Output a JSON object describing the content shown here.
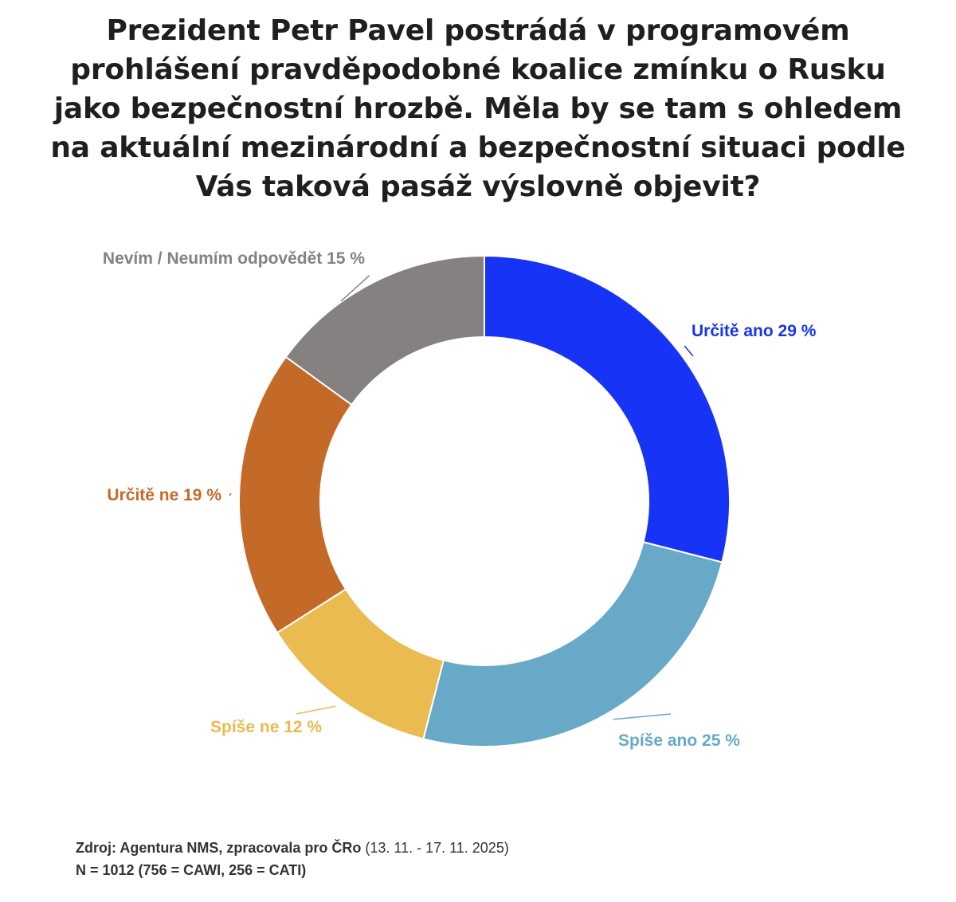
{
  "chart_data": {
    "type": "pie",
    "variant": "donut",
    "title_lines": [
      "Prezident Petr Pavel postrádá v programovém",
      "prohlášení pravděpodobné koalice zmínku o Rusku",
      "jako bezpečnostní hrozbě. Měla by se tam s ohledem",
      "na aktuální mezinárodní a bezpečnostní situaci podle",
      "Vás taková pasáž výslovně objevit?"
    ],
    "slices": [
      {
        "label": "Určitě ano 29 %",
        "category": "Určitě ano",
        "value": 29,
        "color": "#1733f5"
      },
      {
        "label": "Spíše ano 25 %",
        "category": "Spíše ano",
        "value": 25,
        "color": "#67a9c7"
      },
      {
        "label": "Spíše ne 12 %",
        "category": "Spíše ne",
        "value": 12,
        "color": "#e9bb51"
      },
      {
        "label": "Určitě ne 19 %",
        "category": "Určitě ne",
        "value": 19,
        "color": "#c46a29"
      },
      {
        "label": "Nevím / Neumím odpovědět 15 %",
        "category": "Nevím / Neumím odpovědět",
        "value": 15,
        "color": "#858181"
      }
    ],
    "unit": "%"
  },
  "footer": {
    "source_label": "Zdroj: Agentura NMS, zpracovala pro ČRo",
    "source_period": " (13. 11. - 17. 11. 2025)",
    "sample": "N = 1012 (756 = CAWI, 256 = CATI)"
  }
}
